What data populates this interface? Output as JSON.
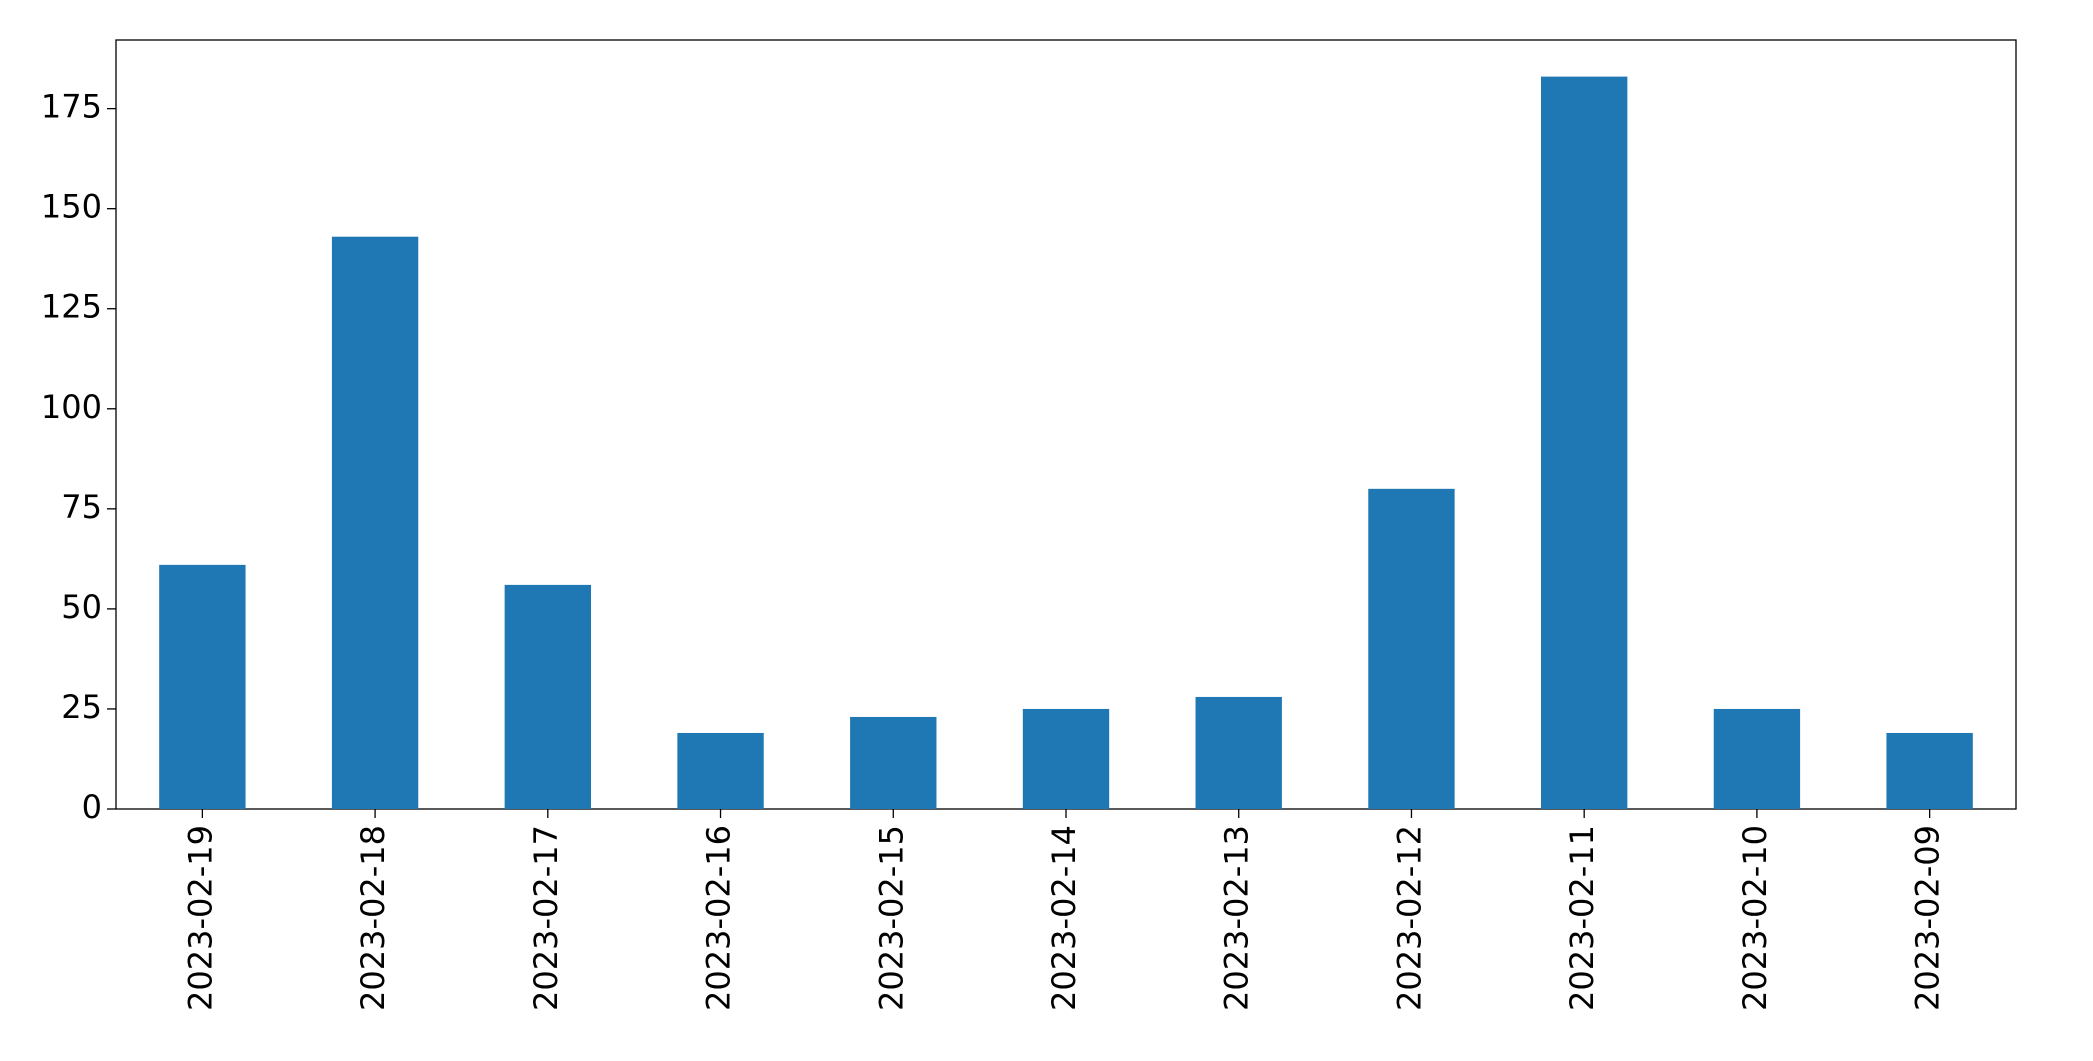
{
  "chart_data": {
    "type": "bar",
    "categories": [
      "2023-02-19",
      "2023-02-18",
      "2023-02-17",
      "2023-02-16",
      "2023-02-15",
      "2023-02-14",
      "2023-02-13",
      "2023-02-12",
      "2023-02-11",
      "2023-02-10",
      "2023-02-09"
    ],
    "values": [
      61,
      143,
      56,
      19,
      23,
      25,
      28,
      80,
      183,
      25,
      19
    ],
    "color": "#1f77b4",
    "ylim": [
      0,
      192.15
    ],
    "yticks": [
      0,
      25,
      50,
      75,
      100,
      125,
      150,
      175
    ],
    "grid": false
  }
}
